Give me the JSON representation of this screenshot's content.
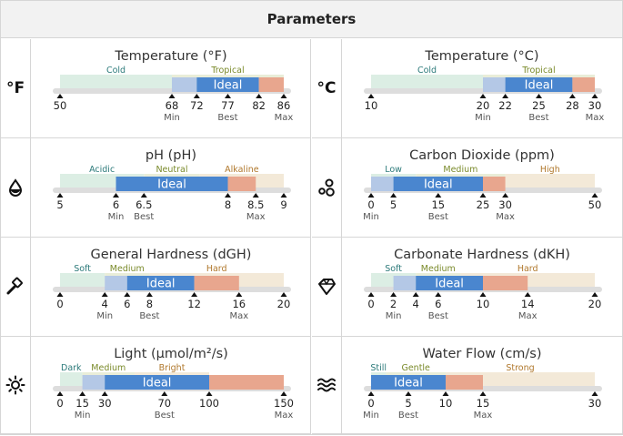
{
  "header": {
    "title": "Parameters"
  },
  "colors": {
    "track": "#dddddd",
    "range": "#b4c8e6",
    "ideal": "#4a86cf",
    "over": "#e8a68e",
    "zones": [
      "#dceee4",
      "#e9edd8",
      "#f3e9d8",
      "#dde6f0"
    ],
    "zone_text": [
      "#2c7a7a",
      "#7a8a2a",
      "#b0782c",
      "#2c5a8a"
    ]
  },
  "params": [
    {
      "title": "Temperature (°F)",
      "icon": "°F",
      "icon_name": "fahrenheit-icon",
      "scale": [
        50,
        86
      ],
      "zones": [
        {
          "label": "Cold",
          "from": 50,
          "to": 68
        },
        {
          "label": "Tropical",
          "from": 68,
          "to": 86
        }
      ],
      "min": 68,
      "ideal_from": 72,
      "ideal_to": 82,
      "best": 77,
      "max": 86,
      "ticks": [
        {
          "value": 50,
          "text": "50",
          "sub": ""
        },
        {
          "value": 68,
          "text": "68",
          "sub": "Min"
        },
        {
          "value": 72,
          "text": "72",
          "sub": ""
        },
        {
          "value": 77,
          "text": "77",
          "sub": "Best"
        },
        {
          "value": 82,
          "text": "82",
          "sub": ""
        },
        {
          "value": 86,
          "text": "86",
          "sub": "Max"
        }
      ],
      "ideal_label": "Ideal"
    },
    {
      "title": "Temperature (°C)",
      "icon": "°C",
      "icon_name": "celsius-icon",
      "scale": [
        10,
        30
      ],
      "zones": [
        {
          "label": "Cold",
          "from": 10,
          "to": 20
        },
        {
          "label": "Tropical",
          "from": 20,
          "to": 30
        }
      ],
      "min": 20,
      "ideal_from": 22,
      "ideal_to": 28,
      "best": 25,
      "max": 30,
      "ticks": [
        {
          "value": 10,
          "text": "10",
          "sub": ""
        },
        {
          "value": 20,
          "text": "20",
          "sub": "Min"
        },
        {
          "value": 22,
          "text": "22",
          "sub": ""
        },
        {
          "value": 25,
          "text": "25",
          "sub": "Best"
        },
        {
          "value": 28,
          "text": "28",
          "sub": ""
        },
        {
          "value": 30,
          "text": "30",
          "sub": "Max"
        }
      ],
      "ideal_label": "Ideal"
    },
    {
      "title": "pH (pH)",
      "icon": "",
      "icon_name": "ph-drop-icon",
      "scale": [
        5,
        9
      ],
      "zones": [
        {
          "label": "Acidic",
          "from": 5,
          "to": 6.5
        },
        {
          "label": "Neutral",
          "from": 6.5,
          "to": 7.5
        },
        {
          "label": "Alkaline",
          "from": 7.5,
          "to": 9
        }
      ],
      "min": 6,
      "ideal_from": 6,
      "ideal_to": 8,
      "best": 6.5,
      "max": 8.5,
      "ticks": [
        {
          "value": 5,
          "text": "5",
          "sub": ""
        },
        {
          "value": 6,
          "text": "6",
          "sub": "Min"
        },
        {
          "value": 6.5,
          "text": "6.5",
          "sub": "Best"
        },
        {
          "value": 8,
          "text": "8",
          "sub": ""
        },
        {
          "value": 8.5,
          "text": "8.5",
          "sub": "Max"
        },
        {
          "value": 9,
          "text": "9",
          "sub": ""
        }
      ],
      "ideal_label": "Ideal"
    },
    {
      "title": "Carbon Dioxide (ppm)",
      "icon": "",
      "icon_name": "co2-bubbles-icon",
      "scale": [
        0,
        50
      ],
      "zones": [
        {
          "label": "Low",
          "from": 0,
          "to": 10
        },
        {
          "label": "Medium",
          "from": 10,
          "to": 30
        },
        {
          "label": "High",
          "from": 30,
          "to": 50
        }
      ],
      "min": 0,
      "ideal_from": 5,
      "ideal_to": 25,
      "best": 15,
      "max": 30,
      "ticks": [
        {
          "value": 0,
          "text": "0",
          "sub": "Min"
        },
        {
          "value": 5,
          "text": "5",
          "sub": ""
        },
        {
          "value": 15,
          "text": "15",
          "sub": "Best"
        },
        {
          "value": 25,
          "text": "25",
          "sub": ""
        },
        {
          "value": 30,
          "text": "30",
          "sub": "Max"
        },
        {
          "value": 50,
          "text": "50",
          "sub": ""
        }
      ],
      "ideal_label": "Ideal"
    },
    {
      "title": "General Hardness (dGH)",
      "icon": "",
      "icon_name": "hammer-icon",
      "scale": [
        0,
        20
      ],
      "zones": [
        {
          "label": "Soft",
          "from": 0,
          "to": 4
        },
        {
          "label": "Medium",
          "from": 4,
          "to": 8
        },
        {
          "label": "Hard",
          "from": 8,
          "to": 20
        }
      ],
      "min": 4,
      "ideal_from": 6,
      "ideal_to": 12,
      "best": 8,
      "max": 16,
      "ticks": [
        {
          "value": 0,
          "text": "0",
          "sub": ""
        },
        {
          "value": 4,
          "text": "4",
          "sub": "Min"
        },
        {
          "value": 6,
          "text": "6",
          "sub": ""
        },
        {
          "value": 8,
          "text": "8",
          "sub": "Best"
        },
        {
          "value": 12,
          "text": "12",
          "sub": ""
        },
        {
          "value": 16,
          "text": "16",
          "sub": "Max"
        },
        {
          "value": 20,
          "text": "20",
          "sub": ""
        }
      ],
      "ideal_label": "Ideal"
    },
    {
      "title": "Carbonate Hardness (dKH)",
      "icon": "",
      "icon_name": "diamond-icon",
      "scale": [
        0,
        20
      ],
      "zones": [
        {
          "label": "Soft",
          "from": 0,
          "to": 4
        },
        {
          "label": "Medium",
          "from": 4,
          "to": 8
        },
        {
          "label": "Hard",
          "from": 8,
          "to": 20
        }
      ],
      "min": 2,
      "ideal_from": 4,
      "ideal_to": 10,
      "best": 6,
      "max": 14,
      "ticks": [
        {
          "value": 0,
          "text": "0",
          "sub": ""
        },
        {
          "value": 2,
          "text": "2",
          "sub": "Min"
        },
        {
          "value": 4,
          "text": "4",
          "sub": ""
        },
        {
          "value": 6,
          "text": "6",
          "sub": "Best"
        },
        {
          "value": 10,
          "text": "10",
          "sub": ""
        },
        {
          "value": 14,
          "text": "14",
          "sub": "Max"
        },
        {
          "value": 20,
          "text": "20",
          "sub": ""
        }
      ],
      "ideal_label": "Ideal"
    },
    {
      "title": "Light (µmol/m²/s)",
      "icon": "",
      "icon_name": "sun-icon",
      "scale": [
        0,
        150
      ],
      "zones": [
        {
          "label": "Dark",
          "from": 0,
          "to": 15
        },
        {
          "label": "Medium",
          "from": 15,
          "to": 50
        },
        {
          "label": "Bright",
          "from": 50,
          "to": 100
        }
      ],
      "min": 15,
      "ideal_from": 30,
      "ideal_to": 100,
      "best": 70,
      "max": 150,
      "ticks": [
        {
          "value": 0,
          "text": "0",
          "sub": ""
        },
        {
          "value": 15,
          "text": "15",
          "sub": "Min"
        },
        {
          "value": 30,
          "text": "30",
          "sub": ""
        },
        {
          "value": 70,
          "text": "70",
          "sub": "Best"
        },
        {
          "value": 100,
          "text": "100",
          "sub": ""
        },
        {
          "value": 150,
          "text": "150",
          "sub": "Max"
        }
      ],
      "ideal_label": "Ideal"
    },
    {
      "title": "Water Flow (cm/s)",
      "icon": "",
      "icon_name": "water-waves-icon",
      "scale": [
        0,
        30
      ],
      "zones": [
        {
          "label": "Still",
          "from": 0,
          "to": 2
        },
        {
          "label": "Gentle",
          "from": 2,
          "to": 10
        },
        {
          "label": "Strong",
          "from": 10,
          "to": 30
        }
      ],
      "min": 0,
      "ideal_from": 0,
      "ideal_to": 10,
      "best": 5,
      "max": 15,
      "ticks": [
        {
          "value": 0,
          "text": "0",
          "sub": "Min"
        },
        {
          "value": 5,
          "text": "5",
          "sub": "Best"
        },
        {
          "value": 10,
          "text": "10",
          "sub": ""
        },
        {
          "value": 15,
          "text": "15",
          "sub": "Max"
        },
        {
          "value": 30,
          "text": "30",
          "sub": ""
        }
      ],
      "ideal_label": "Ideal"
    }
  ]
}
